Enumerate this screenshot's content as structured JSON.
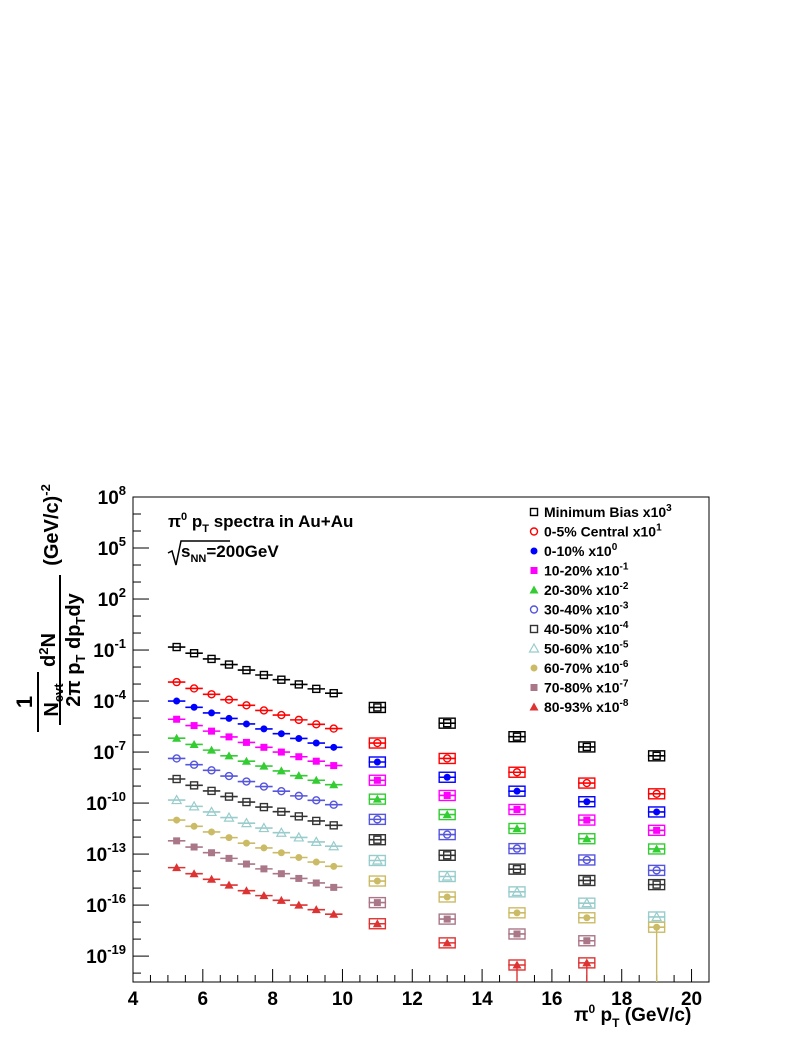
{
  "chart_data": {
    "type": "scatter",
    "log_y": true,
    "xlim": [
      4,
      20.5
    ],
    "ylim": [
      3e-21,
      100000000.0
    ],
    "x_ticks": [
      "4",
      "6",
      "8",
      "10",
      "12",
      "14",
      "16",
      "18",
      "20"
    ],
    "y_ticks": [
      {
        "v": 100000000.0,
        "base": "10",
        "exp": "8"
      },
      {
        "v": 100000.0,
        "base": "10",
        "exp": "5"
      },
      {
        "v": 100.0,
        "base": "10",
        "exp": "2"
      },
      {
        "v": 0.1,
        "base": "10",
        "exp": "-1"
      },
      {
        "v": 0.0001,
        "base": "10",
        "exp": "-4"
      },
      {
        "v": 1e-07,
        "base": "10",
        "exp": "-7"
      },
      {
        "v": 1e-10,
        "base": "10",
        "exp": "-10"
      },
      {
        "v": 1e-13,
        "base": "10",
        "exp": "-13"
      },
      {
        "v": 1e-16,
        "base": "10",
        "exp": "-16"
      },
      {
        "v": 1e-19,
        "base": "10",
        "exp": "-19"
      }
    ],
    "xlabel": {
      "pi": "π",
      "sup": "0",
      "p": " p",
      "sub": "T",
      "unit": " (GeV/c)"
    },
    "ylabel": {
      "frac1_num": "1",
      "frac1_den_main": "N",
      "frac1_den_sub": "evt",
      "num_main": "d",
      "num_sup": "2",
      "num_rest": "N",
      "den": "2π p",
      "den_sub1": "T",
      "den_mid": " dp",
      "den_sub2": "T",
      "den_end": "dy",
      "unit": "(GeV/c)",
      "unit_sup": "-2"
    },
    "annotation": {
      "line1_pi": "π",
      "line1_sup": "0",
      "line1_p": " p",
      "line1_sub": "T",
      "line1_rest": " spectra in Au+Au",
      "line2_s": "s",
      "line2_sub": "NN",
      "line2_rest": "=200GeV"
    },
    "x": [
      5.25,
      5.75,
      6.25,
      6.75,
      7.25,
      7.75,
      8.25,
      8.75,
      9.25,
      9.75,
      11,
      13,
      15,
      17,
      19
    ],
    "series": [
      {
        "name": "Minimum Bias x10",
        "exp": "3",
        "color": "#000000",
        "marker": "open-square",
        "values": [
          0.15,
          0.065,
          0.03,
          0.014,
          0.0066,
          0.0034,
          0.0018,
          0.00095,
          0.00052,
          0.00029,
          4.2e-05,
          5e-06,
          8e-07,
          2e-07,
          6e-08
        ]
      },
      {
        "name": "0-5% Central x10",
        "exp": "1",
        "color": "#ff0000",
        "marker": "open-circle",
        "values": [
          0.0013,
          0.00055,
          0.00025,
          0.00012,
          5.6e-05,
          2.8e-05,
          1.5e-05,
          7.8e-06,
          4.3e-06,
          2.4e-06,
          3.4e-07,
          4.2e-08,
          6.5e-09,
          1.5e-09,
          3.5e-10
        ]
      },
      {
        "name": "0-10% x10",
        "exp": "0",
        "color": "#0000ff",
        "marker": "filled-circle",
        "values": [
          0.0001,
          4.3e-05,
          2e-05,
          9.5e-06,
          4.5e-06,
          2.3e-06,
          1.2e-06,
          6.3e-07,
          3.4e-07,
          1.9e-07,
          2.6e-08,
          3.3e-09,
          5e-10,
          1.2e-10,
          3e-11
        ]
      },
      {
        "name": "10-20% x10",
        "exp": "-1",
        "color": "#ff00ff",
        "marker": "filled-square",
        "values": [
          8.5e-06,
          3.6e-06,
          1.7e-06,
          7.8e-07,
          3.7e-07,
          1.9e-07,
          1e-07,
          5.3e-08,
          2.9e-08,
          1.6e-08,
          2.2e-09,
          2.8e-10,
          4.2e-11,
          1e-11,
          2.5e-12
        ]
      },
      {
        "name": "20-30% x10",
        "exp": "-2",
        "color": "#33cc33",
        "marker": "filled-triangle",
        "values": [
          6.5e-07,
          2.8e-07,
          1.3e-07,
          6e-08,
          2.9e-08,
          1.5e-08,
          7.8e-09,
          4.1e-09,
          2.2e-09,
          1.2e-09,
          1.7e-10,
          2.1e-11,
          3.2e-12,
          8e-13,
          2e-13
        ]
      },
      {
        "name": "30-40% x10",
        "exp": "-3",
        "color": "#5555dd",
        "marker": "open-circle",
        "values": [
          4.2e-08,
          1.8e-08,
          8.4e-09,
          3.9e-09,
          1.85e-09,
          9.4e-10,
          5e-10,
          2.65e-10,
          1.45e-10,
          8e-11,
          1.1e-11,
          1.4e-12,
          2.1e-13,
          4.5e-14,
          1.1e-14
        ]
      },
      {
        "name": "40-50% x10",
        "exp": "-4",
        "color": "#333333",
        "marker": "open-square",
        "values": [
          2.6e-09,
          1.1e-09,
          5.2e-10,
          2.4e-10,
          1.15e-10,
          5.8e-11,
          3.1e-11,
          1.65e-11,
          8.9e-12,
          4.9e-12,
          7e-13,
          8.5e-14,
          1.3e-14,
          2.8e-15,
          1.6e-15
        ]
      },
      {
        "name": "50-60% x10",
        "exp": "-5",
        "color": "#99cccc",
        "marker": "open-triangle",
        "values": [
          1.5e-10,
          6.4e-11,
          3e-11,
          1.4e-11,
          6.6e-12,
          3.4e-12,
          1.8e-12,
          9.5e-13,
          5.2e-13,
          2.9e-13,
          4.2e-14,
          4.8e-15,
          6e-16,
          1.3e-16,
          2e-17
        ]
      },
      {
        "name": "60-70% x10",
        "exp": "-6",
        "color": "#ccbb66",
        "marker": "filled-circle",
        "values": [
          1e-11,
          4.3e-12,
          2e-12,
          9.3e-13,
          4.4e-13,
          2.3e-13,
          1.2e-13,
          6.3e-14,
          3.4e-14,
          1.9e-14,
          2.6e-15,
          3e-16,
          3.5e-17,
          1.8e-17,
          5e-18
        ]
      },
      {
        "name": "70-80% x10",
        "exp": "-7",
        "color": "#aa7788",
        "marker": "filled-square",
        "values": [
          6e-13,
          2.6e-13,
          1.2e-13,
          5.6e-14,
          2.6e-14,
          1.35e-14,
          7e-15,
          3.7e-15,
          2e-15,
          1.1e-15,
          1.4e-16,
          1.5e-17,
          2e-18,
          8e-19,
          null
        ]
      },
      {
        "name": "80-93% x10",
        "exp": "-8",
        "color": "#dd3333",
        "marker": "filled-triangle",
        "values": [
          1.6e-14,
          7e-15,
          3.3e-15,
          1.5e-15,
          7e-16,
          3.6e-16,
          1.9e-16,
          1e-16,
          5.4e-17,
          2.9e-17,
          8e-18,
          6e-19,
          3e-20,
          4e-20,
          null
        ]
      }
    ],
    "legend": "top-right"
  }
}
